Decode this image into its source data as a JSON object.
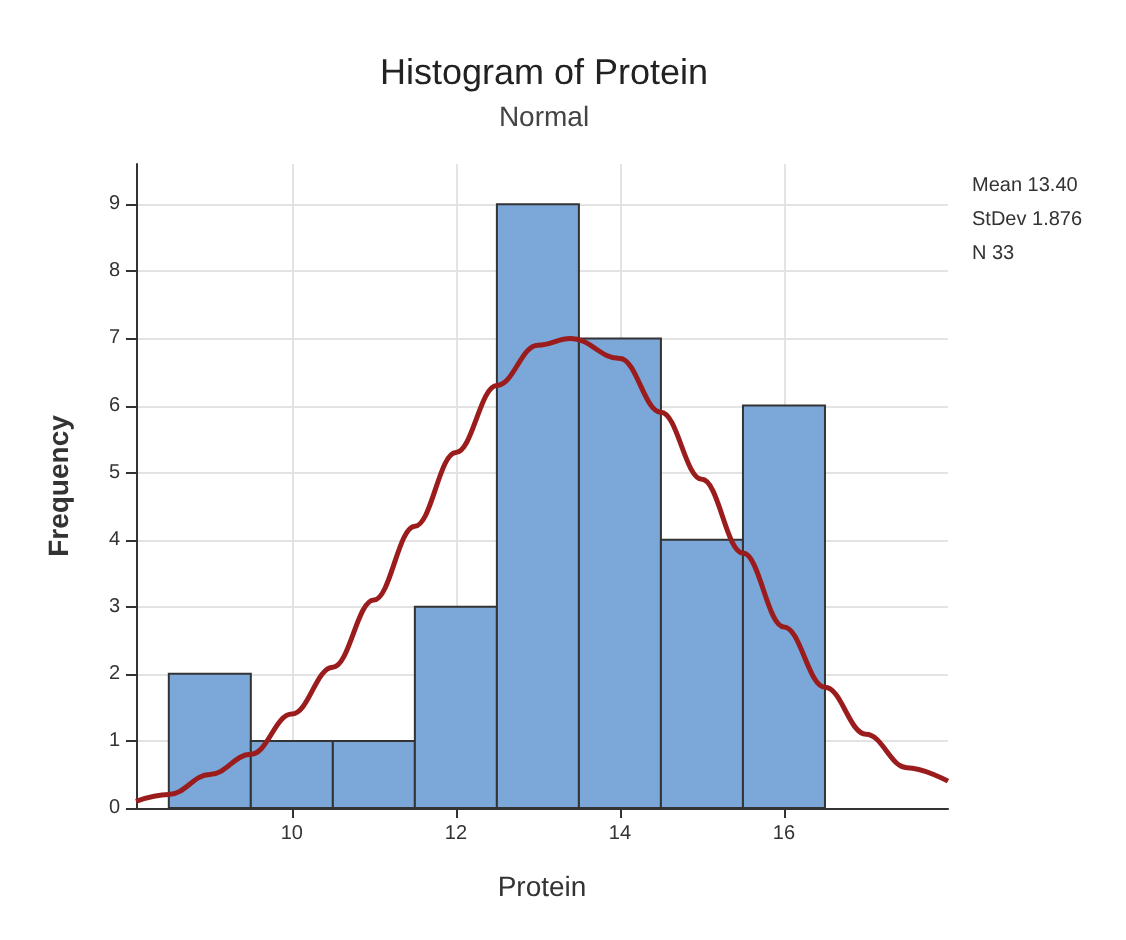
{
  "chart_data": {
    "type": "histogram",
    "title": "Histogram of Protein",
    "subtitle": "Normal",
    "xlabel": "Protein",
    "ylabel": "Frequency",
    "bins": [
      8.5,
      9.5,
      10.5,
      11.5,
      12.5,
      13.5,
      14.5,
      15.5,
      16.5
    ],
    "values": [
      2,
      1,
      1,
      3,
      9,
      7,
      4,
      6
    ],
    "color": "#7ba7d9",
    "series": [
      {
        "type": "line",
        "color": "#9b1c1c",
        "x": [
          8.1,
          8.5,
          9,
          9.5,
          10,
          10.5,
          11,
          11.5,
          12,
          12.5,
          13,
          13.4,
          14,
          14.5,
          15,
          15.5,
          16,
          16.5,
          17,
          17.5,
          18
        ],
        "values": [
          0.1,
          0.2,
          0.5,
          0.8,
          1.4,
          2.1,
          3.1,
          4.2,
          5.3,
          6.3,
          6.9,
          7.0,
          6.7,
          5.9,
          4.9,
          3.8,
          2.7,
          1.8,
          1.1,
          0.6,
          0.4
        ]
      }
    ],
    "xlim": [
      8.1,
      18.0
    ],
    "xticks": [
      10,
      12,
      14,
      16
    ],
    "ylim": [
      0,
      9.6
    ],
    "yticks": [
      0,
      1,
      2,
      3,
      4,
      5,
      6,
      7,
      8,
      9
    ],
    "grid": true,
    "marker": "none",
    "annotations": [
      "Mean 13.40",
      "StDev 1.876",
      "N 33"
    ]
  }
}
